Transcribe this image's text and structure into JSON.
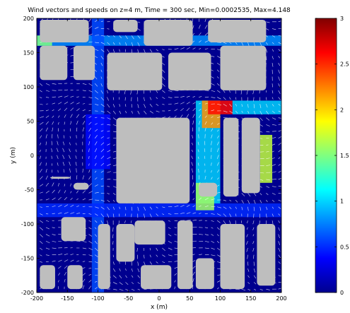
{
  "chart_data": {
    "type": "heatmap",
    "title": "Wind vectors and speeds on z=4 m, Time = 300 sec,  Min=0.0002535, Max=4.148",
    "xlabel": "x (m)",
    "ylabel": "y (m)",
    "xlim": [
      -200,
      200
    ],
    "ylim": [
      -200,
      200
    ],
    "x_ticks": [
      -200,
      -150,
      -100,
      -50,
      0,
      50,
      100,
      150,
      200
    ],
    "y_ticks": [
      -200,
      -150,
      -100,
      -50,
      0,
      50,
      100,
      150,
      200
    ],
    "x_tick_labels": [
      "-200",
      "-150",
      "-100",
      "-50",
      "0",
      "50",
      "100",
      "150",
      "200"
    ],
    "y_tick_labels": [
      "-200",
      "-150",
      "-100",
      "-50",
      "0",
      "50",
      "100",
      "150",
      "200"
    ],
    "colorbar": {
      "colormap": "jet",
      "range": [
        0,
        3
      ],
      "ticks": [
        0,
        0.5,
        1,
        1.5,
        2,
        2.5,
        3
      ],
      "tick_labels": [
        "0",
        "0.5",
        "1",
        "1.5",
        "2",
        "2.5",
        "3"
      ]
    },
    "buildings": [
      {
        "x": [
          -195,
          -150
        ],
        "y": [
          110,
          160
        ]
      },
      {
        "x": [
          -140,
          -105
        ],
        "y": [
          110,
          160
        ]
      },
      {
        "x": [
          -195,
          -115
        ],
        "y": [
          165,
          198
        ]
      },
      {
        "x": [
          -85,
          5
        ],
        "y": [
          95,
          150
        ]
      },
      {
        "x": [
          -25,
          55
        ],
        "y": [
          160,
          198
        ]
      },
      {
        "x": [
          -75,
          -35
        ],
        "y": [
          180,
          198
        ]
      },
      {
        "x": [
          15,
          85
        ],
        "y": [
          95,
          150
        ]
      },
      {
        "x": [
          100,
          175
        ],
        "y": [
          95,
          160
        ]
      },
      {
        "x": [
          80,
          175
        ],
        "y": [
          165,
          198
        ]
      },
      {
        "x": [
          -70,
          50
        ],
        "y": [
          -70,
          55
        ]
      },
      {
        "x": [
          -178,
          -145
        ],
        "y": [
          -34,
          -31
        ]
      },
      {
        "x": [
          -160,
          -120
        ],
        "y": [
          -125,
          -90
        ]
      },
      {
        "x": [
          -195,
          -170
        ],
        "y": [
          -195,
          -160
        ]
      },
      {
        "x": [
          -150,
          -125
        ],
        "y": [
          -195,
          -160
        ]
      },
      {
        "x": [
          -100,
          -80
        ],
        "y": [
          -195,
          -100
        ]
      },
      {
        "x": [
          -70,
          -40
        ],
        "y": [
          -155,
          -100
        ]
      },
      {
        "x": [
          -40,
          10
        ],
        "y": [
          -130,
          -95
        ]
      },
      {
        "x": [
          -30,
          20
        ],
        "y": [
          -195,
          -160
        ]
      },
      {
        "x": [
          30,
          55
        ],
        "y": [
          -195,
          -95
        ]
      },
      {
        "x": [
          60,
          90
        ],
        "y": [
          -195,
          -150
        ]
      },
      {
        "x": [
          100,
          140
        ],
        "y": [
          -195,
          -100
        ]
      },
      {
        "x": [
          160,
          190
        ],
        "y": [
          -190,
          -100
        ]
      },
      {
        "x": [
          105,
          130
        ],
        "y": [
          -60,
          55
        ]
      },
      {
        "x": [
          135,
          165
        ],
        "y": [
          -55,
          55
        ]
      },
      {
        "x": [
          -140,
          -115
        ],
        "y": [
          -50,
          -40
        ]
      },
      {
        "x": [
          65,
          95
        ],
        "y": [
          -60,
          -40
        ]
      }
    ],
    "wind_speed_zones": [
      {
        "x": [
          -200,
          200
        ],
        "y": [
          160,
          175
        ],
        "speed": 0.8
      },
      {
        "x": [
          -200,
          -175
        ],
        "y": [
          160,
          175
        ],
        "speed": 1.5
      },
      {
        "x": [
          -110,
          -90
        ],
        "y": [
          -200,
          200
        ],
        "speed": 0.6
      },
      {
        "x": [
          -200,
          200
        ],
        "y": [
          -90,
          -70
        ],
        "speed": 0.5
      },
      {
        "x": [
          60,
          100
        ],
        "y": [
          -70,
          80
        ],
        "speed": 1.0
      },
      {
        "x": [
          70,
          100
        ],
        "y": [
          40,
          80
        ],
        "speed": 2.2
      },
      {
        "x": [
          80,
          120
        ],
        "y": [
          60,
          80
        ],
        "speed": 2.6
      },
      {
        "x": [
          60,
          90
        ],
        "y": [
          -80,
          -40
        ],
        "speed": 1.6
      },
      {
        "x": [
          165,
          185
        ],
        "y": [
          -40,
          30
        ],
        "speed": 1.7
      },
      {
        "x": [
          120,
          200
        ],
        "y": [
          60,
          80
        ],
        "speed": 1.0
      },
      {
        "x": [
          -120,
          -80
        ],
        "y": [
          -20,
          60
        ],
        "speed": 0.4
      }
    ],
    "grid": false
  }
}
